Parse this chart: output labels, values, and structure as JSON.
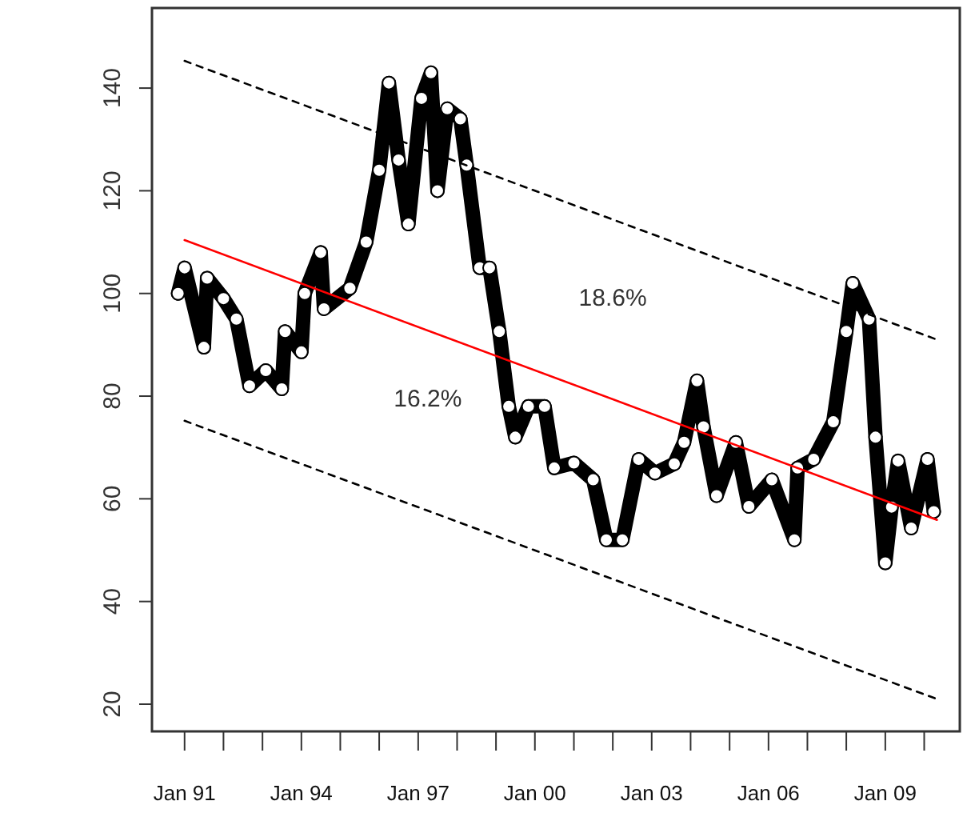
{
  "chart_data": {
    "type": "line",
    "marker": "circle",
    "grid": false,
    "xlim": [
      "1990-03",
      "2010-12"
    ],
    "ylim": [
      14.7,
      155.6
    ],
    "yticks": [
      20,
      40,
      60,
      80,
      100,
      120,
      140
    ],
    "xticks": [
      {
        "value": "1991-01",
        "label": "Jan 91"
      },
      {
        "value": "1992-01",
        "label": null
      },
      {
        "value": "1993-01",
        "label": null
      },
      {
        "value": "1994-01",
        "label": "Jan 94"
      },
      {
        "value": "1995-01",
        "label": null
      },
      {
        "value": "1996-01",
        "label": null
      },
      {
        "value": "1997-01",
        "label": "Jan 97"
      },
      {
        "value": "1998-01",
        "label": null
      },
      {
        "value": "1999-01",
        "label": null
      },
      {
        "value": "2000-01",
        "label": "Jan 00"
      },
      {
        "value": "2001-01",
        "label": null
      },
      {
        "value": "2002-01",
        "label": null
      },
      {
        "value": "2003-01",
        "label": "Jan 03"
      },
      {
        "value": "2004-01",
        "label": null
      },
      {
        "value": "2005-01",
        "label": null
      },
      {
        "value": "2006-01",
        "label": "Jan 06"
      },
      {
        "value": "2007-01",
        "label": null
      },
      {
        "value": "2008-01",
        "label": null
      },
      {
        "value": "2009-01",
        "label": "Jan 09"
      },
      {
        "value": "2010-01",
        "label": null
      }
    ],
    "series": [
      {
        "color": "#000000",
        "x": [
          "1990-11",
          "1991-01",
          "1991-07",
          "1991-08",
          "1992-01",
          "1992-05",
          "1992-09",
          "1993-02",
          "1993-07",
          "1993-08",
          "1994-01",
          "1994-02",
          "1994-07",
          "1994-08",
          "1995-04",
          "1995-09",
          "1996-01",
          "1996-04",
          "1996-07",
          "1996-10",
          "1997-02",
          "1997-05",
          "1997-07",
          "1997-10",
          "1998-02",
          "1998-04",
          "1998-08",
          "1998-11",
          "1999-02",
          "1999-05",
          "1999-07",
          "1999-11",
          "2000-04",
          "2000-07",
          "2001-01",
          "2001-07",
          "2001-11",
          "2002-04",
          "2002-09",
          "2003-02",
          "2003-08",
          "2003-11",
          "2004-03",
          "2004-05",
          "2004-09",
          "2005-03",
          "2005-07",
          "2006-02",
          "2006-09",
          "2006-10",
          "2007-03",
          "2007-09",
          "2008-01",
          "2008-03",
          "2008-08",
          "2008-10",
          "2009-01",
          "2009-03",
          "2009-05",
          "2009-09",
          "2010-02",
          "2010-04"
        ],
        "values": [
          100,
          105,
          89.5,
          103,
          99,
          95,
          82,
          85,
          81.4,
          92.6,
          88.6,
          100,
          108,
          97,
          101,
          110,
          124,
          141,
          126,
          113.5,
          138,
          143,
          120,
          136,
          134,
          125,
          105,
          105,
          92.6,
          78,
          72,
          78,
          78,
          66,
          67,
          63.7,
          52,
          52,
          67.7,
          65,
          66.8,
          71,
          83,
          74,
          60.6,
          71,
          58.5,
          63.7,
          52,
          66,
          67.7,
          75,
          92.6,
          102,
          95,
          72,
          47.5,
          58.4,
          67.4,
          54.3,
          67.7,
          57.5
        ]
      },
      {
        "type": "line",
        "marker": "none",
        "line_style": "solid",
        "color": "#ff0000",
        "x": [
          "1991-01",
          "2010-05"
        ],
        "values": [
          110.4,
          55.9
        ]
      },
      {
        "type": "line",
        "marker": "none",
        "line_style": "dashed",
        "color": "#000000",
        "x": [
          "1991-01",
          "2010-05"
        ],
        "values": [
          145.3,
          91
        ]
      },
      {
        "type": "line",
        "marker": "none",
        "line_style": "dashed",
        "color": "#000000",
        "x": [
          "1991-01",
          "2010-05"
        ],
        "values": [
          75.2,
          21
        ]
      }
    ],
    "annotations": [
      "16.2%",
      "18.6%"
    ]
  }
}
